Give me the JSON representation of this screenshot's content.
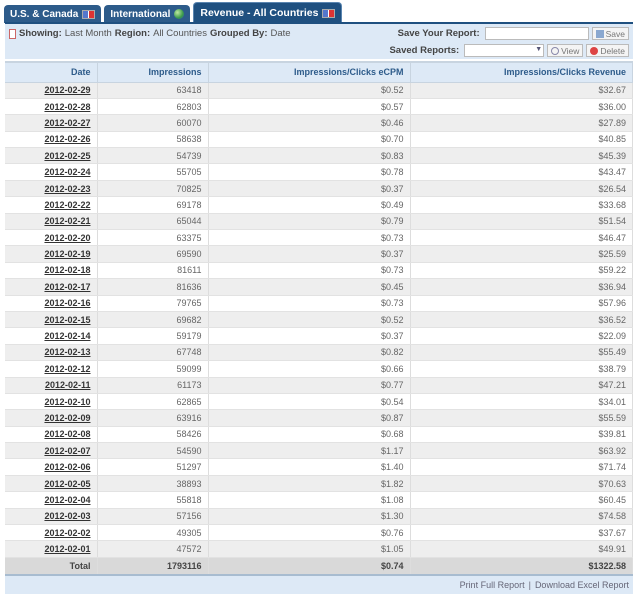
{
  "tabs": [
    {
      "label": "U.S. & Canada",
      "icon": "us-canada-flag-icon"
    },
    {
      "label": "International",
      "icon": "globe-icon"
    },
    {
      "label": "Revenue - All Countries",
      "icon": "globe-flags-icon",
      "active": true
    }
  ],
  "filter": {
    "showing_label": "Showing:",
    "showing": "Last Month",
    "region_label": "Region:",
    "region": "All Countries",
    "grouped_label": "Grouped By:",
    "grouped": "Date"
  },
  "save": {
    "label": "Save Your Report:",
    "value": "",
    "button": "Save"
  },
  "saved": {
    "label": "Saved Reports:",
    "value": "",
    "view": "View",
    "delete": "Delete"
  },
  "table": {
    "columns": [
      "Date",
      "Impressions",
      "Impressions/Clicks eCPM",
      "Impressions/Clicks Revenue"
    ],
    "rows": [
      [
        "2012-02-29",
        "63418",
        "$0.52",
        "$32.67"
      ],
      [
        "2012-02-28",
        "62803",
        "$0.57",
        "$36.00"
      ],
      [
        "2012-02-27",
        "60070",
        "$0.46",
        "$27.89"
      ],
      [
        "2012-02-26",
        "58638",
        "$0.70",
        "$40.85"
      ],
      [
        "2012-02-25",
        "54739",
        "$0.83",
        "$45.39"
      ],
      [
        "2012-02-24",
        "55705",
        "$0.78",
        "$43.47"
      ],
      [
        "2012-02-23",
        "70825",
        "$0.37",
        "$26.54"
      ],
      [
        "2012-02-22",
        "69178",
        "$0.49",
        "$33.68"
      ],
      [
        "2012-02-21",
        "65044",
        "$0.79",
        "$51.54"
      ],
      [
        "2012-02-20",
        "63375",
        "$0.73",
        "$46.47"
      ],
      [
        "2012-02-19",
        "69590",
        "$0.37",
        "$25.59"
      ],
      [
        "2012-02-18",
        "81611",
        "$0.73",
        "$59.22"
      ],
      [
        "2012-02-17",
        "81636",
        "$0.45",
        "$36.94"
      ],
      [
        "2012-02-16",
        "79765",
        "$0.73",
        "$57.96"
      ],
      [
        "2012-02-15",
        "69682",
        "$0.52",
        "$36.52"
      ],
      [
        "2012-02-14",
        "59179",
        "$0.37",
        "$22.09"
      ],
      [
        "2012-02-13",
        "67748",
        "$0.82",
        "$55.49"
      ],
      [
        "2012-02-12",
        "59099",
        "$0.66",
        "$38.79"
      ],
      [
        "2012-02-11",
        "61173",
        "$0.77",
        "$47.21"
      ],
      [
        "2012-02-10",
        "62865",
        "$0.54",
        "$34.01"
      ],
      [
        "2012-02-09",
        "63916",
        "$0.87",
        "$55.59"
      ],
      [
        "2012-02-08",
        "58426",
        "$0.68",
        "$39.81"
      ],
      [
        "2012-02-07",
        "54590",
        "$1.17",
        "$63.92"
      ],
      [
        "2012-02-06",
        "51297",
        "$1.40",
        "$71.74"
      ],
      [
        "2012-02-05",
        "38893",
        "$1.82",
        "$70.63"
      ],
      [
        "2012-02-04",
        "55818",
        "$1.08",
        "$60.45"
      ],
      [
        "2012-02-03",
        "57156",
        "$1.30",
        "$74.58"
      ],
      [
        "2012-02-02",
        "49305",
        "$0.76",
        "$37.67"
      ],
      [
        "2012-02-01",
        "47572",
        "$1.05",
        "$49.91"
      ]
    ],
    "total": [
      "Total",
      "1793116",
      "$0.74",
      "$1322.58"
    ]
  },
  "footer": {
    "print": "Print Full Report",
    "download": "Download Excel Report"
  }
}
